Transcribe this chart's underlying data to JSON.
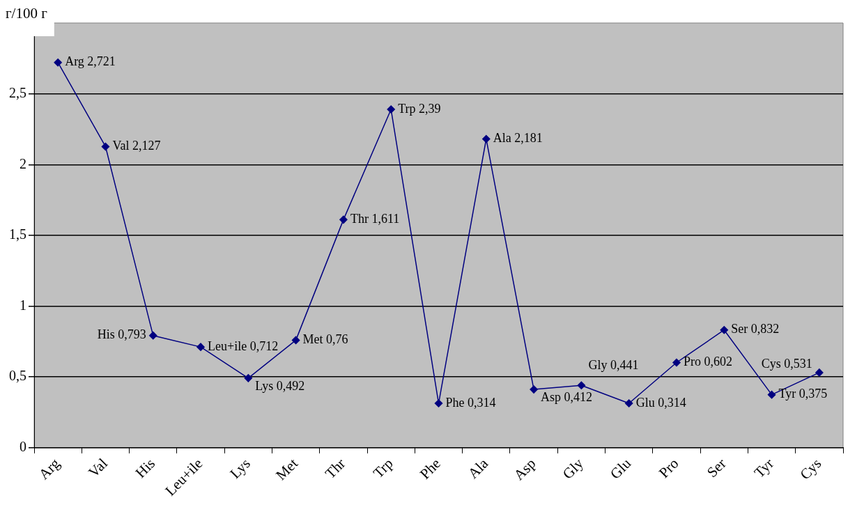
{
  "chart_data": {
    "type": "line",
    "ylabel": "г/100 г",
    "categories": [
      "Arg",
      "Val",
      "His",
      "Leu+ile",
      "Lys",
      "Met",
      "Thr",
      "Trp",
      "Phe",
      "Ala",
      "Asp",
      "Gly",
      "Glu",
      "Pro",
      "Ser",
      "Tyr",
      "Cys"
    ],
    "series": [
      {
        "color": "#000080",
        "values": [
          2.721,
          2.127,
          0.793,
          0.712,
          0.492,
          0.76,
          1.611,
          2.39,
          0.314,
          2.181,
          0.412,
          0.441,
          0.314,
          0.602,
          0.832,
          0.375,
          0.531
        ],
        "value_labels": [
          "Arg 2,721",
          "Val 2,127",
          "His 0,793",
          "Leu+ile 0,712",
          "Lys 0,492",
          "Met 0,76",
          "Thr 1,611",
          "Trp 2,39",
          "Phe 0,314",
          "Ala 2,181",
          "Asp 0,412",
          "Gly 0,441",
          "Glu 0,314",
          "Pro 0,602",
          "Ser 0,832",
          "Tyr 0,375",
          "Cys 0,531"
        ]
      }
    ],
    "ylim": [
      0,
      3
    ],
    "yticks": [
      0,
      {
        "value": 0.5,
        "label": "0,5"
      },
      1,
      {
        "value": 1.5,
        "label": "1,5"
      },
      2,
      {
        "value": 2.5,
        "label": "2,5"
      }
    ],
    "grid": "y",
    "legend": false,
    "marker": "diamond",
    "line_style": "solid"
  }
}
